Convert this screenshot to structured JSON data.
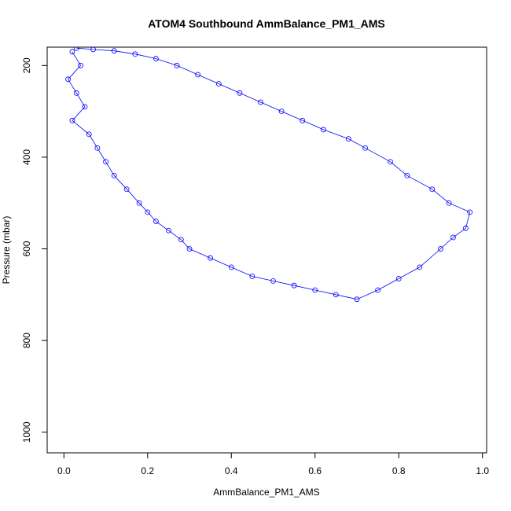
{
  "chart_data": {
    "type": "line",
    "title": "ATOM4 Southbound AmmBalance_PM1_AMS",
    "xlabel": "AmmBalance_PM1_AMS",
    "ylabel": "Pressure (mbar)",
    "xlim": [
      -0.04,
      1.01
    ],
    "ylim": [
      1045,
      160
    ],
    "y_reversed": true,
    "x_ticks": [
      0.0,
      0.2,
      0.4,
      0.6,
      0.8,
      1.0
    ],
    "x_tick_labels": [
      "0.0",
      "0.2",
      "0.4",
      "0.6",
      "0.8",
      "1.0"
    ],
    "y_ticks": [
      200,
      400,
      600,
      800,
      1000
    ],
    "y_tick_labels": [
      "200",
      "400",
      "600",
      "800",
      "1000"
    ],
    "grid": false,
    "marker": "open-circle",
    "color": "#0000ff",
    "series": [
      {
        "x": [
          0.02,
          0.04,
          0.01,
          0.03,
          0.05,
          0.02,
          0.06,
          0.08,
          0.1,
          0.12,
          0.15,
          0.18,
          0.2,
          0.22,
          0.25,
          0.28,
          0.3,
          0.35,
          0.4,
          0.45,
          0.5,
          0.55,
          0.6,
          0.65,
          0.7,
          0.75,
          0.8,
          0.85,
          0.9,
          0.93,
          0.96,
          0.97,
          0.92,
          0.88,
          0.82,
          0.78,
          0.72,
          0.68,
          0.62,
          0.57,
          0.52,
          0.47,
          0.42,
          0.37,
          0.32,
          0.27,
          0.22,
          0.17,
          0.12,
          0.07,
          0.03
        ],
        "y": [
          170,
          200,
          230,
          260,
          290,
          320,
          350,
          380,
          410,
          440,
          470,
          500,
          520,
          540,
          560,
          580,
          600,
          620,
          640,
          660,
          670,
          680,
          690,
          700,
          710,
          690,
          665,
          640,
          600,
          575,
          555,
          520,
          500,
          470,
          440,
          410,
          380,
          360,
          340,
          320,
          300,
          280,
          260,
          240,
          220,
          200,
          185,
          175,
          168,
          165,
          162
        ]
      }
    ]
  }
}
